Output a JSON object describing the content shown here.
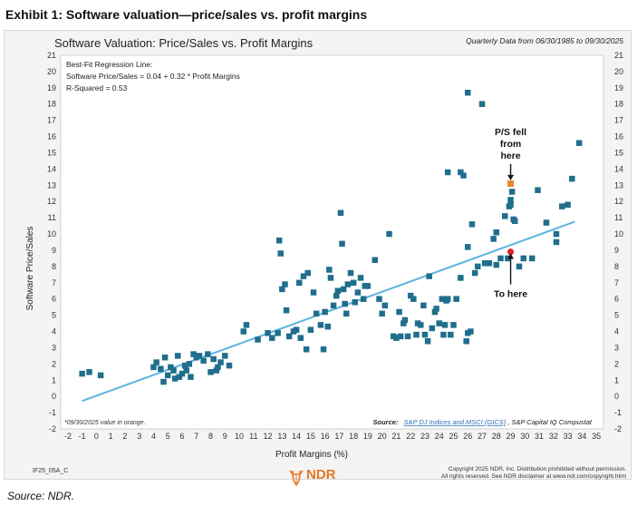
{
  "exhibit_title": "Exhibit 1: Software valuation—price/sales vs. profit margins",
  "source_note": "Source: NDR.",
  "footer": {
    "chart_code": "IF25_05A_C",
    "logo_text": "NDR",
    "copyright_line1": "Copyright 2025 NDR, Inc. Distribution prohibited without permission.",
    "copyright_line2": "All rights reserved. See NDR disclaimer at www.ndr.com/copyright.html"
  },
  "colors": {
    "series": "#1f6e8c",
    "latest": "#e8862f",
    "start": "#d7262b",
    "fit": "#5ab4e0",
    "panel": "#f4f4f4"
  },
  "chart_data": {
    "type": "scatter",
    "title": "Software Valuation: Price/Sales vs. Profit Margins",
    "subtitle": "Quarterly Data from 06/30/1985 to 09/30/2025",
    "xlabel": "Profit Margins (%)",
    "ylabel": "Software Price/Sales",
    "xlim": [
      -2.5,
      35.5
    ],
    "ylim": [
      -2,
      21
    ],
    "x_ticks": [
      -2,
      -1,
      0,
      1,
      2,
      3,
      4,
      5,
      6,
      7,
      8,
      9,
      10,
      11,
      12,
      13,
      14,
      15,
      16,
      17,
      18,
      19,
      20,
      21,
      22,
      23,
      24,
      25,
      26,
      27,
      28,
      29,
      30,
      31,
      32,
      33,
      34,
      35
    ],
    "y_ticks": [
      -2,
      -1,
      0,
      1,
      2,
      3,
      4,
      5,
      6,
      7,
      8,
      9,
      10,
      11,
      12,
      13,
      14,
      15,
      16,
      17,
      18,
      19,
      20,
      21
    ],
    "regression": {
      "lines": [
        "Best-Fit Regression Line:",
        "Software Price/Sales = 0.04 + 0.32 * Profit Margins",
        "R-Squared = 0.53"
      ],
      "intercept": 0.04,
      "slope": 0.32,
      "x_range": [
        -1,
        33.5
      ]
    },
    "annotations": [
      {
        "lines": [
          "P/S fell",
          "from",
          "here"
        ],
        "arrow_from": [
          29,
          14.3
        ],
        "arrow_to": [
          29,
          13.3
        ]
      },
      {
        "lines": [
          "To here"
        ],
        "arrow_from": [
          29,
          6.9
        ],
        "arrow_to": [
          29,
          8.8
        ]
      }
    ],
    "footnote": "*09/30/2025 value in orange.",
    "source": {
      "label": "Source:",
      "link_text": "S&P DJ Indices and MSCI (GICS)",
      "rest": ", S&P Capital IQ Compustat"
    },
    "highlight_points": [
      {
        "x": 29,
        "y": 13.1,
        "color": "latest"
      },
      {
        "x": 29,
        "y": 8.9,
        "color": "start"
      }
    ],
    "points": [
      [
        -1,
        1.4
      ],
      [
        -0.5,
        1.5
      ],
      [
        0.3,
        1.3
      ],
      [
        4,
        1.8
      ],
      [
        4.2,
        2.1
      ],
      [
        4.5,
        1.7
      ],
      [
        4.7,
        0.9
      ],
      [
        4.8,
        2.4
      ],
      [
        5,
        1.3
      ],
      [
        5.2,
        1.8
      ],
      [
        5.4,
        1.6
      ],
      [
        5.5,
        1.1
      ],
      [
        5.7,
        2.5
      ],
      [
        5.8,
        1.2
      ],
      [
        6,
        1.4
      ],
      [
        6.2,
        1.9
      ],
      [
        6.3,
        1.6
      ],
      [
        6.5,
        2.0
      ],
      [
        6.6,
        1.2
      ],
      [
        6.8,
        2.6
      ],
      [
        7,
        2.4
      ],
      [
        7.2,
        2.5
      ],
      [
        7.5,
        2.2
      ],
      [
        7.8,
        2.6
      ],
      [
        8,
        1.5
      ],
      [
        8.2,
        2.3
      ],
      [
        8.4,
        1.6
      ],
      [
        8.5,
        1.8
      ],
      [
        8.7,
        2.1
      ],
      [
        9,
        2.5
      ],
      [
        9.3,
        1.9
      ],
      [
        10.3,
        4.0
      ],
      [
        10.5,
        4.4
      ],
      [
        11.3,
        3.5
      ],
      [
        12,
        3.9
      ],
      [
        12.3,
        3.6
      ],
      [
        12.7,
        3.9
      ],
      [
        12.8,
        9.6
      ],
      [
        12.9,
        8.8
      ],
      [
        13,
        6.6
      ],
      [
        13.2,
        6.9
      ],
      [
        13.3,
        5.3
      ],
      [
        13.5,
        3.7
      ],
      [
        13.8,
        4.0
      ],
      [
        14,
        4.1
      ],
      [
        14.2,
        7.0
      ],
      [
        14.3,
        3.6
      ],
      [
        14.5,
        7.4
      ],
      [
        14.7,
        2.9
      ],
      [
        14.8,
        7.6
      ],
      [
        15,
        4.1
      ],
      [
        15.2,
        6.4
      ],
      [
        15.4,
        5.1
      ],
      [
        15.7,
        4.4
      ],
      [
        15.9,
        2.9
      ],
      [
        16,
        5.2
      ],
      [
        16.2,
        4.3
      ],
      [
        16.3,
        7.8
      ],
      [
        16.4,
        7.3
      ],
      [
        16.6,
        5.6
      ],
      [
        16.8,
        6.2
      ],
      [
        16.9,
        6.5
      ],
      [
        17.1,
        11.3
      ],
      [
        17.2,
        9.4
      ],
      [
        17.3,
        6.6
      ],
      [
        17.4,
        5.7
      ],
      [
        17.5,
        5.1
      ],
      [
        17.6,
        6.9
      ],
      [
        17.8,
        7.6
      ],
      [
        18,
        7.0
      ],
      [
        18.1,
        5.8
      ],
      [
        18.3,
        6.4
      ],
      [
        18.5,
        7.3
      ],
      [
        18.7,
        6.0
      ],
      [
        18.8,
        6.8
      ],
      [
        19,
        6.8
      ],
      [
        19.5,
        8.4
      ],
      [
        19.8,
        6.0
      ],
      [
        20,
        5.1
      ],
      [
        20.2,
        5.6
      ],
      [
        20.5,
        10.0
      ],
      [
        20.8,
        3.7
      ],
      [
        21,
        3.6
      ],
      [
        21.2,
        5.2
      ],
      [
        21.3,
        3.7
      ],
      [
        21.5,
        4.5
      ],
      [
        21.6,
        4.7
      ],
      [
        21.8,
        3.7
      ],
      [
        22,
        6.2
      ],
      [
        22.2,
        6.0
      ],
      [
        22.4,
        3.8
      ],
      [
        22.5,
        4.5
      ],
      [
        22.7,
        4.4
      ],
      [
        22.9,
        5.6
      ],
      [
        23,
        3.8
      ],
      [
        23.2,
        3.4
      ],
      [
        23.3,
        7.4
      ],
      [
        23.5,
        4.2
      ],
      [
        23.7,
        5.2
      ],
      [
        23.8,
        5.4
      ],
      [
        24,
        4.5
      ],
      [
        24.2,
        6.0
      ],
      [
        24.3,
        3.8
      ],
      [
        24.4,
        4.4
      ],
      [
        24.5,
        5.9
      ],
      [
        24.6,
        6.0
      ],
      [
        24.8,
        3.8
      ],
      [
        25,
        4.4
      ],
      [
        25.2,
        6.0
      ],
      [
        25.5,
        7.3
      ],
      [
        25.9,
        3.4
      ],
      [
        26,
        3.9
      ],
      [
        26.2,
        4.0
      ],
      [
        24.6,
        13.8
      ],
      [
        25.5,
        13.8
      ],
      [
        25.7,
        13.6
      ],
      [
        26,
        18.7
      ],
      [
        26,
        9.2
      ],
      [
        26.3,
        10.6
      ],
      [
        27,
        18.0
      ],
      [
        26.5,
        7.6
      ],
      [
        26.7,
        8.0
      ],
      [
        27.2,
        8.2
      ],
      [
        27.5,
        8.2
      ],
      [
        27.8,
        9.7
      ],
      [
        28,
        10.1
      ],
      [
        28,
        8.1
      ],
      [
        28.3,
        8.5
      ],
      [
        28.6,
        11.1
      ],
      [
        28.8,
        8.5
      ],
      [
        28.9,
        11.7
      ],
      [
        29,
        12.1
      ],
      [
        29,
        11.8
      ],
      [
        29.1,
        12.6
      ],
      [
        29.2,
        10.9
      ],
      [
        29.3,
        10.8
      ],
      [
        29.6,
        8.0
      ],
      [
        29.9,
        8.5
      ],
      [
        30.5,
        8.5
      ],
      [
        30.9,
        12.7
      ],
      [
        31.5,
        10.7
      ],
      [
        32.2,
        10.0
      ],
      [
        32.2,
        9.5
      ],
      [
        32.6,
        11.7
      ],
      [
        33,
        11.8
      ],
      [
        33.3,
        13.4
      ],
      [
        33.8,
        15.6
      ]
    ]
  }
}
